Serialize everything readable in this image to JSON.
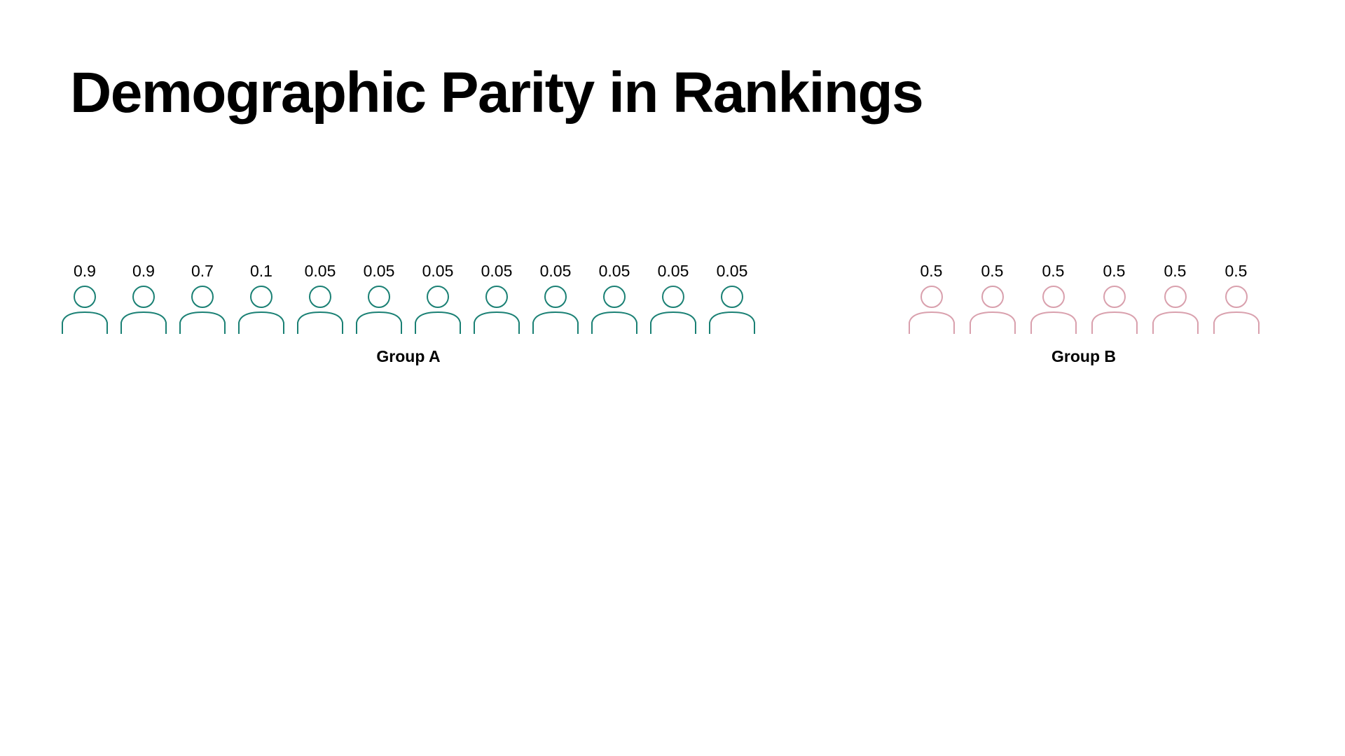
{
  "title": "Demographic Parity in Rankings",
  "groups": [
    {
      "id": "group-a",
      "label": "Group A",
      "color": "#1a8074",
      "scores": [
        "0.9",
        "0.9",
        "0.7",
        "0.1",
        "0.05",
        "0.05",
        "0.05",
        "0.05",
        "0.05",
        "0.05",
        "0.05",
        "0.05"
      ]
    },
    {
      "id": "group-b",
      "label": "Group B",
      "color": "#d9a0ad",
      "scores": [
        "0.5",
        "0.5",
        "0.5",
        "0.5",
        "0.5",
        "0.5"
      ]
    }
  ],
  "icons": {
    "person": "person-outline-icon"
  }
}
